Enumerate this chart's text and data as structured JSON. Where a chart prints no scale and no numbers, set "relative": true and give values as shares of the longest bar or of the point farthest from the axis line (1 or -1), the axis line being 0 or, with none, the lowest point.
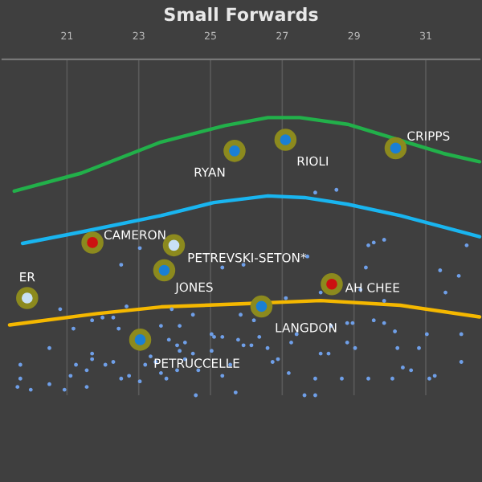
{
  "chart_data": {
    "type": "line",
    "title": "Small Forwards",
    "relative": true,
    "xlim": [
      19.2,
      32.5
    ],
    "xticks": [
      21,
      23,
      25,
      27,
      29,
      31
    ],
    "grid": "x",
    "legend": false,
    "series": [
      {
        "color": "#22b04a",
        "x": [
          19.53,
          21.4,
          23.62,
          25.4,
          26.6,
          27.49,
          28.82,
          30.29,
          31.49,
          32.5
        ],
        "values": [
          0.735,
          0.8,
          0.912,
          0.971,
          1.0,
          1.0,
          0.976,
          0.918,
          0.871,
          0.841
        ]
      },
      {
        "color": "#19b5f0",
        "x": [
          19.76,
          21.4,
          23.62,
          25.09,
          26.6,
          27.62,
          28.82,
          30.29,
          31.49,
          32.5
        ],
        "values": [
          0.547,
          0.588,
          0.647,
          0.694,
          0.718,
          0.712,
          0.688,
          0.647,
          0.606,
          0.571
        ]
      },
      {
        "color": "#f5b800",
        "x": [
          19.4,
          21.84,
          23.62,
          25.84,
          28.07,
          30.29,
          32.5
        ],
        "values": [
          0.253,
          0.294,
          0.318,
          0.329,
          0.341,
          0.324,
          0.282
        ]
      },
      {
        "type": "scatter",
        "marker": "circle",
        "color": "#6f9fe8",
        "x": [
          22.51,
          23.03,
          25.33,
          25.92,
          27.7,
          29.4,
          29.33,
          31.4,
          31.92,
          31.55,
          32.14,
          27.92,
          28.51,
          29.55,
          29.84,
          20.81,
          21.18,
          21.99,
          22.29,
          21.7,
          22.66,
          23.92,
          24.51,
          23.62,
          24.14,
          25.1,
          25.33,
          25.77,
          26.14,
          26.36,
          25.92,
          27.25,
          26.59,
          23.84,
          24.07,
          24.29,
          24.14,
          24.51,
          25.03,
          28.07,
          28.29,
          28.81,
          29.03,
          28.81,
          28.96,
          29.55,
          29.84,
          30.14,
          30.81,
          30.21,
          20.51,
          21.7,
          21.7,
          22.29,
          22.07,
          21.55,
          21.25,
          19.7,
          19.7,
          19.62,
          19.99,
          20.51,
          20.93,
          21.1,
          21.55,
          22.51,
          22.73,
          23.03,
          23.18,
          23.47,
          23.62,
          23.77,
          24.07,
          24.29,
          24.66,
          24.59,
          25.33,
          25.7,
          26.73,
          26.88,
          27.18,
          27.62,
          27.92,
          27.92,
          28.66,
          29.4,
          30.07,
          30.36,
          30.59,
          31.1,
          31.25,
          31.99,
          31.99,
          31.03,
          27.1,
          28.07,
          29.18,
          29.84,
          28.36,
          27.4,
          26.21,
          25.84,
          25.03,
          25.55,
          23.33,
          22.44
        ],
        "values": [
          0.47,
          0.53,
          0.46,
          0.47,
          0.5,
          0.54,
          0.46,
          0.45,
          0.43,
          0.37,
          0.54,
          0.73,
          0.74,
          0.55,
          0.56,
          0.31,
          0.24,
          0.28,
          0.28,
          0.27,
          0.32,
          0.31,
          0.29,
          0.25,
          0.25,
          0.21,
          0.21,
          0.2,
          0.18,
          0.21,
          0.18,
          0.19,
          0.17,
          0.2,
          0.18,
          0.19,
          0.16,
          0.15,
          0.16,
          0.15,
          0.15,
          0.19,
          0.17,
          0.26,
          0.26,
          0.27,
          0.26,
          0.23,
          0.17,
          0.17,
          0.17,
          0.15,
          0.13,
          0.12,
          0.11,
          0.09,
          0.11,
          0.11,
          0.06,
          0.03,
          0.02,
          0.04,
          0.02,
          0.07,
          0.03,
          0.06,
          0.07,
          0.05,
          0.11,
          0.12,
          0.08,
          0.06,
          0.09,
          0.13,
          0.09,
          0.0,
          0.07,
          0.01,
          0.12,
          0.13,
          0.08,
          0.0,
          0.0,
          0.06,
          0.06,
          0.06,
          0.06,
          0.1,
          0.09,
          0.06,
          0.07,
          0.12,
          0.22,
          0.22,
          0.35,
          0.37,
          0.38,
          0.34,
          0.25,
          0.22,
          0.27,
          0.29,
          0.22,
          0.11,
          0.14,
          0.24
        ]
      },
      {
        "type": "scatter",
        "name": "RYAN",
        "marker": "circle",
        "color": "#1a7fd4",
        "x": [
          25.67
        ],
        "values": [
          0.88
        ]
      },
      {
        "type": "scatter",
        "name": "RIOLI",
        "marker": "circle",
        "color": "#1a7fd4",
        "x": [
          27.09
        ],
        "values": [
          0.92
        ]
      },
      {
        "type": "scatter",
        "name": "CRIPPS",
        "marker": "circle",
        "color": "#1a7fd4",
        "x": [
          30.16
        ],
        "values": [
          0.89
        ]
      },
      {
        "type": "scatter",
        "name": "CAMERON",
        "marker": "circle",
        "color": "#cc1111",
        "x": [
          21.71
        ],
        "values": [
          0.55
        ]
      },
      {
        "type": "scatter",
        "name": "PETREVSKI-SETON*",
        "marker": "circle",
        "color": "#c8e0f5",
        "x": [
          23.98
        ],
        "values": [
          0.54
        ]
      },
      {
        "type": "scatter",
        "name": "JONES",
        "marker": "circle",
        "color": "#1a7fd4",
        "x": [
          23.71
        ],
        "values": [
          0.45
        ]
      },
      {
        "type": "scatter",
        "name": "ER",
        "marker": "circle",
        "color": "#c8e0f5",
        "x": [
          19.89
        ],
        "values": [
          0.35
        ]
      },
      {
        "type": "scatter",
        "name": "AH CHEE",
        "marker": "circle",
        "color": "#cc1111",
        "x": [
          28.38
        ],
        "values": [
          0.4
        ]
      },
      {
        "type": "scatter",
        "name": "LANGDON",
        "marker": "circle",
        "color": "#1a7fd4",
        "x": [
          26.42
        ],
        "values": [
          0.32
        ]
      },
      {
        "type": "scatter",
        "name": "PETRUCCELLE",
        "marker": "circle",
        "color": "#1a7fd4",
        "x": [
          23.04
        ],
        "values": [
          0.2
        ]
      }
    ]
  }
}
